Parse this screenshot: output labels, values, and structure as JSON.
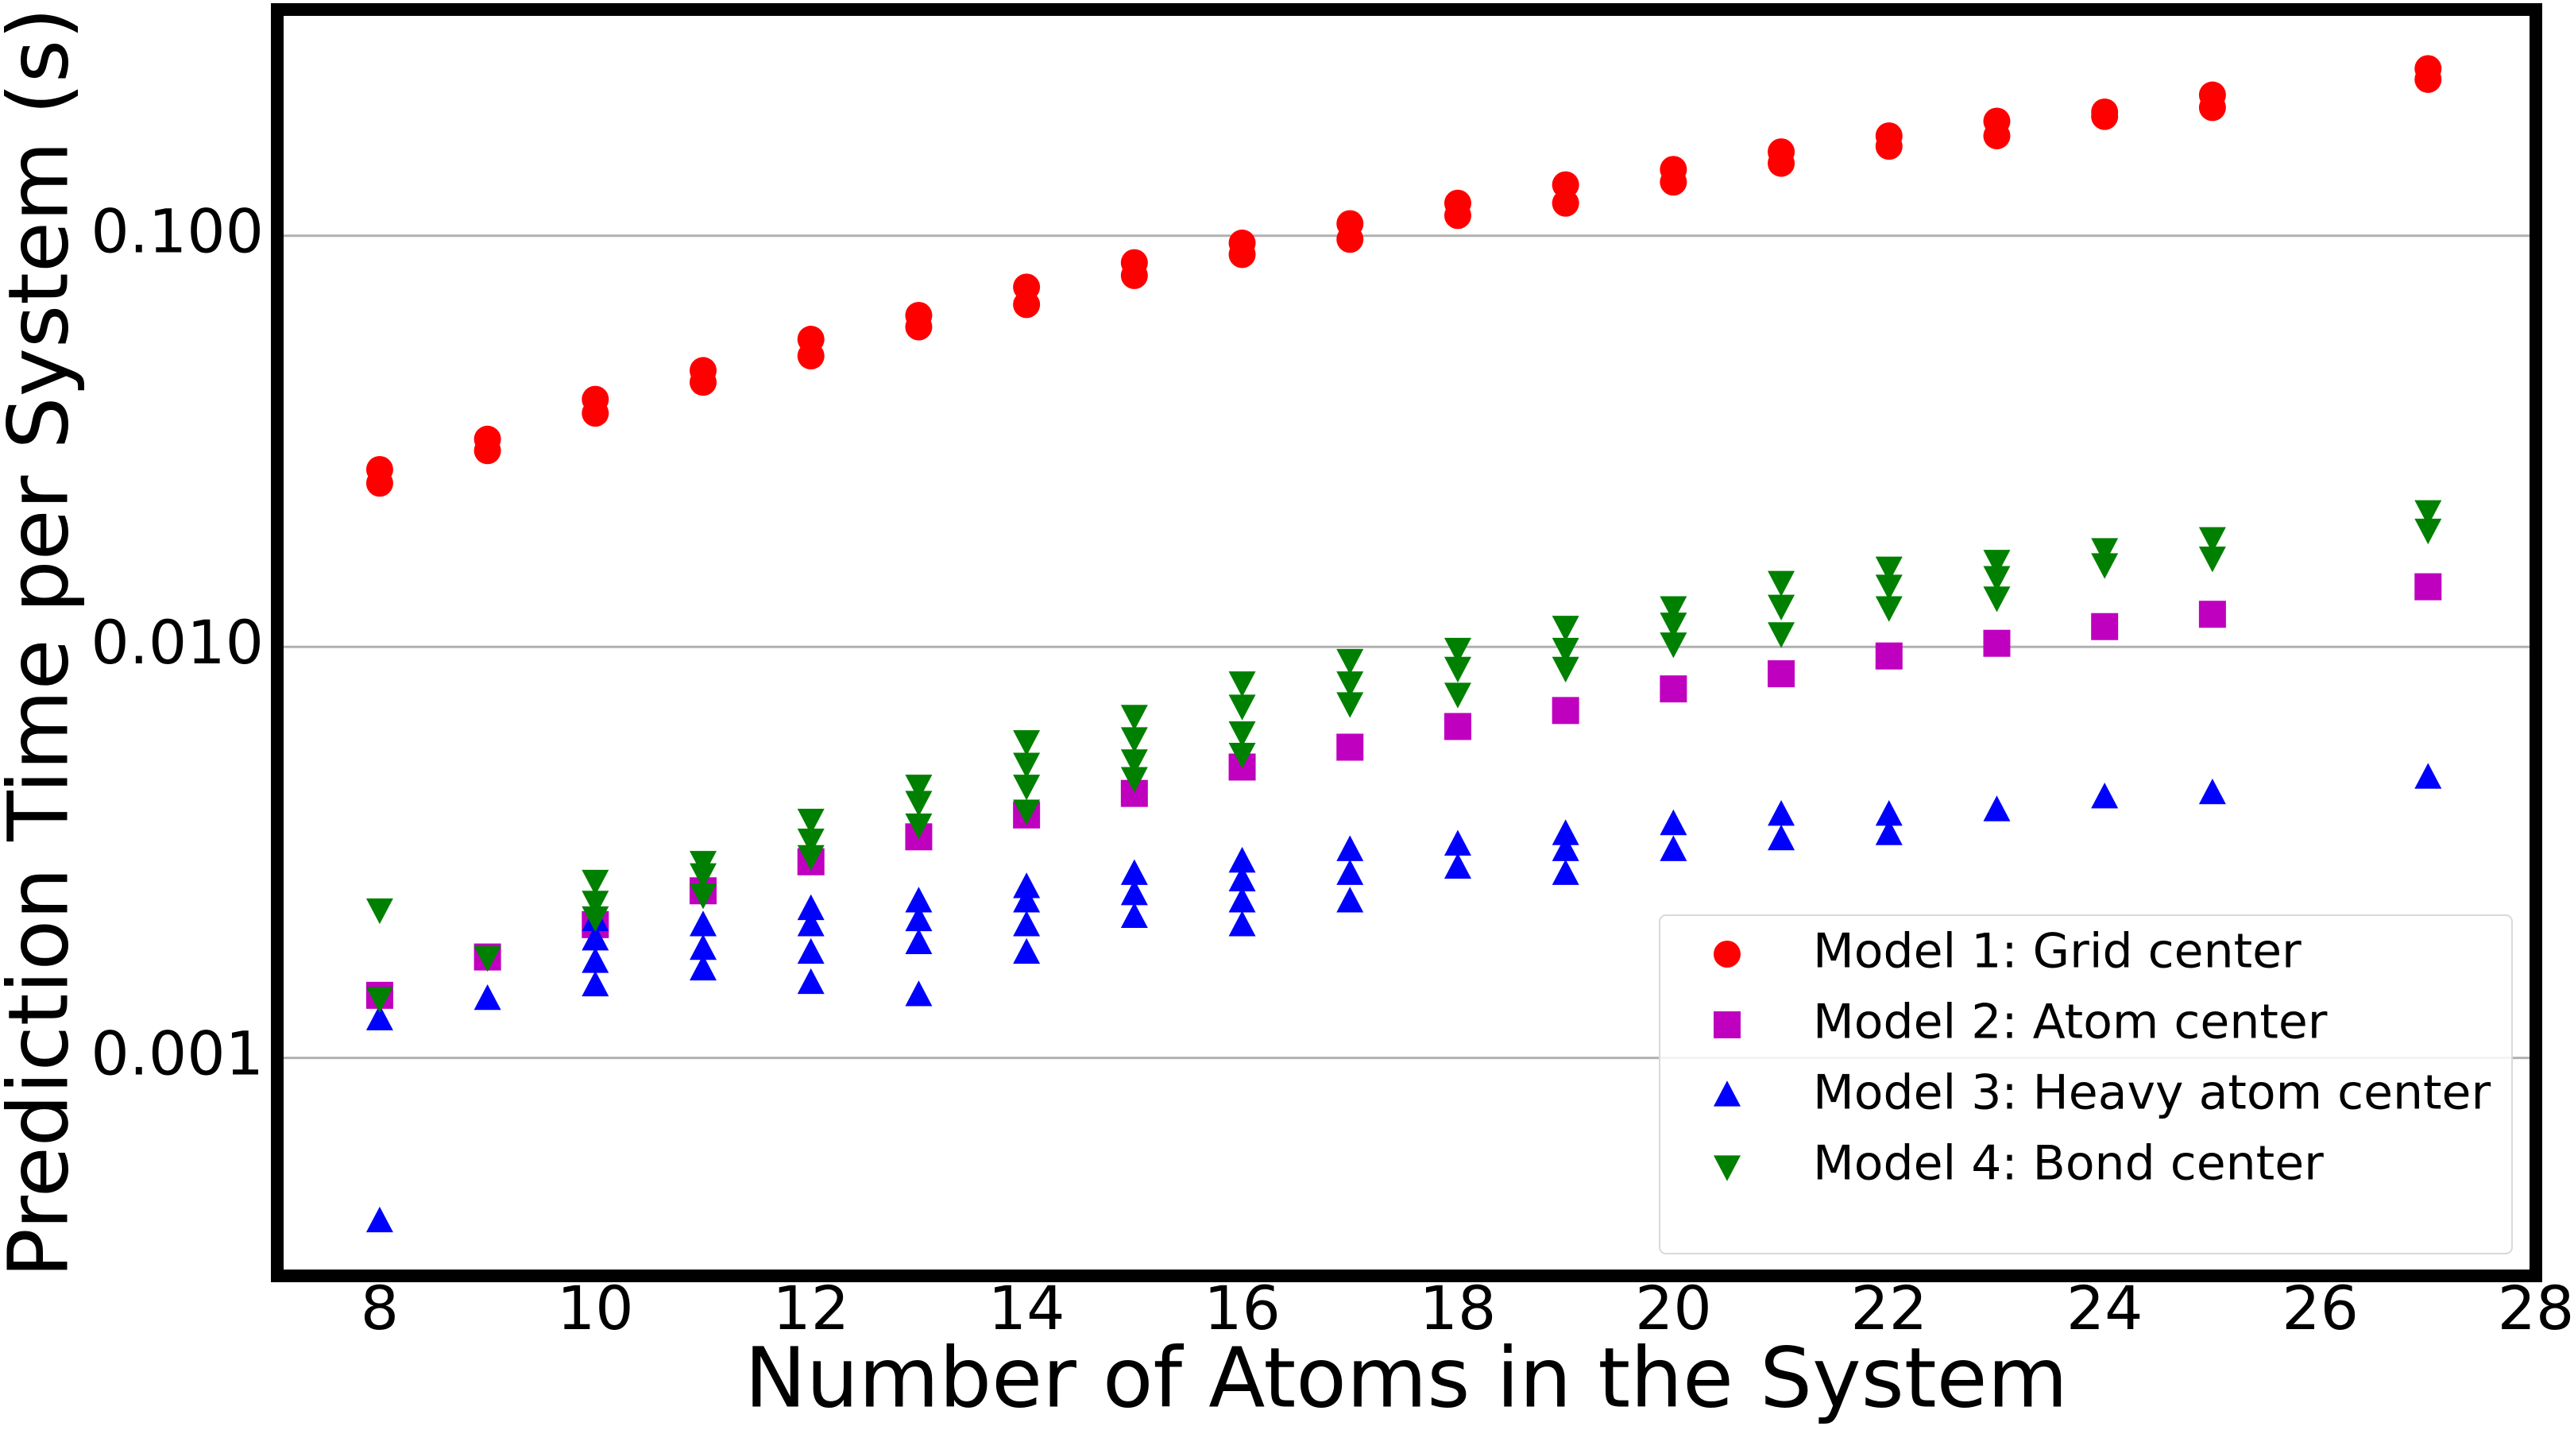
{
  "chart_data": {
    "type": "scatter",
    "x_label": "Number of Atoms in the System",
    "y_label": "Prediction Time per System (s)",
    "xlim": [
      7.05,
      28
    ],
    "xticks": [
      8,
      10,
      12,
      14,
      16,
      18,
      20,
      22,
      24,
      26,
      28
    ],
    "ylim": [
      0.000295,
      0.355
    ],
    "yticks": [
      {
        "value": 0.001,
        "label": "0.001"
      },
      {
        "value": 0.01,
        "label": "0.010"
      },
      {
        "value": 0.1,
        "label": "0.100"
      }
    ],
    "y_scale": "log",
    "grid": true,
    "legend_position": "lower right",
    "series": [
      {
        "name": "Model 1: Grid center",
        "color": "#ff0000",
        "marker": "o",
        "x": [
          8,
          8,
          9,
          9,
          10,
          10,
          11,
          11,
          12,
          12,
          13,
          13,
          14,
          14,
          15,
          15,
          16,
          16,
          17,
          17,
          18,
          18,
          19,
          19,
          20,
          20,
          21,
          21,
          22,
          22,
          23,
          23,
          24,
          24,
          25,
          25,
          27,
          27
        ],
        "y": [
          0.025,
          0.027,
          0.03,
          0.032,
          0.037,
          0.04,
          0.044,
          0.047,
          0.051,
          0.056,
          0.06,
          0.064,
          0.068,
          0.075,
          0.08,
          0.086,
          0.09,
          0.096,
          0.098,
          0.107,
          0.112,
          0.12,
          0.12,
          0.133,
          0.135,
          0.145,
          0.15,
          0.16,
          0.165,
          0.175,
          0.175,
          0.19,
          0.195,
          0.2,
          0.205,
          0.22,
          0.24,
          0.255
        ]
      },
      {
        "name": "Model 2: Atom center",
        "color": "#bf00bf",
        "marker": "s",
        "x": [
          8,
          9,
          10,
          11,
          12,
          13,
          14,
          15,
          16,
          17,
          18,
          19,
          20,
          21,
          22,
          23,
          24,
          25,
          27
        ],
        "y": [
          0.00142,
          0.00176,
          0.00211,
          0.00255,
          0.003,
          0.00345,
          0.0039,
          0.0044,
          0.0051,
          0.0057,
          0.0064,
          0.007,
          0.0079,
          0.0086,
          0.0095,
          0.0102,
          0.0112,
          0.012,
          0.014
        ]
      },
      {
        "name": "Model 3: Heavy atom center",
        "color": "#0000ff",
        "marker": "^",
        "x": [
          8,
          8,
          9,
          10,
          10,
          10,
          10,
          11,
          11,
          11,
          12,
          12,
          12,
          12,
          13,
          13,
          13,
          13,
          14,
          14,
          14,
          14,
          15,
          15,
          15,
          16,
          16,
          16,
          16,
          17,
          17,
          17,
          18,
          18,
          19,
          19,
          19,
          20,
          20,
          21,
          21,
          22,
          22,
          23,
          24,
          25,
          27
        ],
        "y": [
          0.00124,
          0.0004,
          0.00139,
          0.0015,
          0.00171,
          0.00194,
          0.00216,
          0.00164,
          0.00184,
          0.0021,
          0.00152,
          0.0018,
          0.0021,
          0.0023,
          0.00142,
          0.0019,
          0.00216,
          0.0024,
          0.0018,
          0.0021,
          0.0024,
          0.0026,
          0.0022,
          0.0025,
          0.0028,
          0.0021,
          0.0024,
          0.0027,
          0.003,
          0.0024,
          0.0028,
          0.0032,
          0.0029,
          0.0033,
          0.0028,
          0.0032,
          0.0035,
          0.0032,
          0.0037,
          0.0034,
          0.0039,
          0.0035,
          0.0039,
          0.004,
          0.0043,
          0.0044,
          0.0048
        ]
      },
      {
        "name": "Model 4: Bond center",
        "color": "#008000",
        "marker": "v",
        "x": [
          8,
          8,
          9,
          10,
          10,
          10,
          11,
          11,
          11,
          12,
          12,
          12,
          13,
          13,
          13,
          14,
          14,
          14,
          14,
          15,
          15,
          15,
          15,
          16,
          16,
          16,
          16,
          17,
          17,
          17,
          18,
          18,
          18,
          19,
          19,
          19,
          20,
          20,
          20,
          21,
          21,
          21,
          22,
          22,
          22,
          23,
          23,
          23,
          24,
          24,
          25,
          25,
          27,
          27
        ],
        "y": [
          0.0023,
          0.0014,
          0.00176,
          0.0027,
          0.0024,
          0.0022,
          0.003,
          0.0028,
          0.0025,
          0.0038,
          0.0034,
          0.0031,
          0.0046,
          0.0042,
          0.0037,
          0.0059,
          0.0052,
          0.0046,
          0.004,
          0.0068,
          0.006,
          0.0053,
          0.0048,
          0.0082,
          0.0072,
          0.0062,
          0.0055,
          0.0093,
          0.0082,
          0.0073,
          0.0099,
          0.0089,
          0.0077,
          0.0112,
          0.0099,
          0.0089,
          0.0125,
          0.0114,
          0.0102,
          0.0144,
          0.0126,
          0.0108,
          0.0156,
          0.0141,
          0.0125,
          0.0162,
          0.0148,
          0.0132,
          0.0173,
          0.0159,
          0.0184,
          0.0165,
          0.0214,
          0.0193
        ]
      }
    ]
  }
}
